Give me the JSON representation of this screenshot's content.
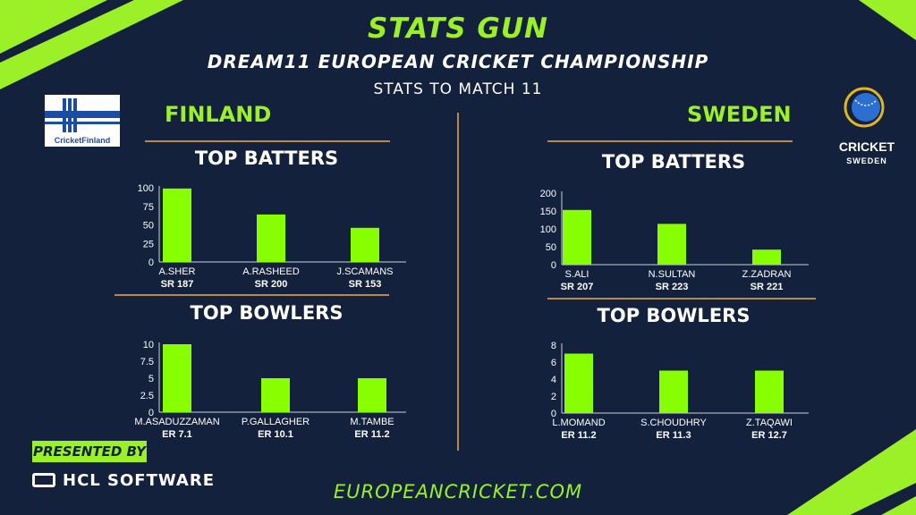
{
  "header": {
    "title": "STATS GUN",
    "subtitle": "DREAM11 EUROPEAN CRICKET CHAMPIONSHIP",
    "stats_label": "STATS TO MATCH 11"
  },
  "teams": {
    "left": {
      "name": "FINLAND",
      "logo_text": "CricketFinland"
    },
    "right": {
      "name": "SWEDEN",
      "logo_text": "CRICKET",
      "logo_subtext": "SWEDEN"
    }
  },
  "sections": {
    "batters": "TOP BATTERS",
    "bowlers": "TOP BOWLERS"
  },
  "footer": {
    "presented_by": "PRESENTED BY",
    "sponsor": "HCL SOFTWARE",
    "url": "EUROPEANCRICKET.COM"
  },
  "colors": {
    "bar": "#88ff00",
    "accent": "#9bf028",
    "background": "#13213d",
    "rule": "#b98a48"
  },
  "chart_data": [
    {
      "type": "bar",
      "team": "FINLAND",
      "title": "TOP BATTERS",
      "categories": [
        "A.SHER",
        "A.RASHEED",
        "J.SCAMANS"
      ],
      "values": [
        99,
        64,
        46
      ],
      "sublabels": [
        "SR 187",
        "SR 200",
        "SR 153"
      ],
      "yticks": [
        "0",
        "25",
        "50",
        "75",
        "100"
      ],
      "ylim": [
        0,
        100
      ]
    },
    {
      "type": "bar",
      "team": "FINLAND",
      "title": "TOP BOWLERS",
      "categories": [
        "M.ASADUZZAMAN",
        "P.GALLAGHER",
        "M.TAMBE"
      ],
      "values": [
        10,
        5,
        5
      ],
      "sublabels": [
        "ER 7.1",
        "ER 10.1",
        "ER 11.2"
      ],
      "yticks": [
        "0",
        "2.5",
        "5",
        "7.5",
        "10"
      ],
      "ylim": [
        0,
        10
      ]
    },
    {
      "type": "bar",
      "team": "SWEDEN",
      "title": "TOP BATTERS",
      "categories": [
        "S.ALI",
        "N.SULTAN",
        "Z.ZADRAN"
      ],
      "values": [
        153,
        114,
        42
      ],
      "sublabels": [
        "SR 207",
        "SR 223",
        "SR 221"
      ],
      "yticks": [
        "0",
        "50",
        "100",
        "150",
        "200"
      ],
      "ylim": [
        0,
        200
      ]
    },
    {
      "type": "bar",
      "team": "SWEDEN",
      "title": "TOP BOWLERS",
      "categories": [
        "L.MOMAND",
        "S.CHOUDHRY",
        "Z.TAQAWI"
      ],
      "values": [
        7,
        5,
        5
      ],
      "sublabels": [
        "ER 11.2",
        "ER 11.3",
        "ER 12.7"
      ],
      "yticks": [
        "0",
        "2",
        "4",
        "6",
        "8"
      ],
      "ylim": [
        0,
        8
      ]
    }
  ]
}
